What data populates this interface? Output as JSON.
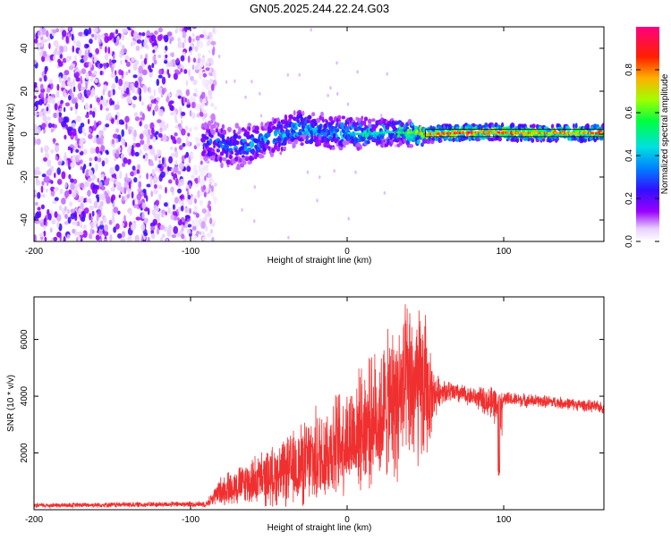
{
  "title": "GN05.2025.244.22.24.G03",
  "chart_data": [
    {
      "type": "heatmap",
      "name": "spectrogram",
      "xlabel": "Height of straight line (km)",
      "ylabel": "Frequency (Hz)",
      "xlim": [
        -200,
        164
      ],
      "ylim": [
        -50,
        50
      ],
      "xticks": [
        -200,
        -100,
        0,
        100
      ],
      "yticks": [
        -40,
        -20,
        0,
        20,
        40
      ],
      "colorbar": {
        "label": "Normalized spectral amplitude",
        "range": [
          0,
          1
        ],
        "ticks": [
          0.0,
          0.2,
          0.4,
          0.6,
          0.8
        ],
        "tick_labels": [
          "0.0",
          "0.2",
          "0.4",
          "0.6",
          "0.8"
        ],
        "colors": [
          "#ffffff",
          "#9a00ff",
          "#0020ff",
          "#00c8ff",
          "#00ff60",
          "#c8ff00",
          "#ff8000",
          "#ff0000",
          "#ff0080"
        ]
      },
      "ridge": {
        "x": [
          -90,
          -70,
          -50,
          -30,
          -10,
          10,
          30,
          50,
          70,
          90,
          110,
          130,
          150,
          164
        ],
        "frequency": [
          -4,
          -6,
          -2,
          3,
          1,
          0,
          1,
          0,
          0.5,
          1,
          0.5,
          0.5,
          0.5,
          0.5
        ],
        "peak_amplitude": [
          0.3,
          0.35,
          0.4,
          0.45,
          0.45,
          0.5,
          0.5,
          0.8,
          0.9,
          0.85,
          0.85,
          0.8,
          0.85,
          0.85
        ]
      },
      "noise_region_x": [
        -200,
        -90
      ]
    },
    {
      "type": "line",
      "name": "snr",
      "xlabel": "Height of straight line (km)",
      "ylabel": "SNR (10 * v/v)",
      "xlim": [
        -200,
        164
      ],
      "ylim": [
        0,
        7500
      ],
      "xticks": [
        -200,
        -100,
        0,
        100
      ],
      "yticks": [
        2000,
        4000,
        6000
      ],
      "color": "#f03030",
      "envelope": {
        "x": [
          -200,
          -90,
          -80,
          -60,
          -40,
          -20,
          0,
          20,
          30,
          40,
          50,
          55,
          60,
          80,
          95,
          100,
          130,
          164
        ],
        "mean": [
          150,
          200,
          700,
          1000,
          1300,
          1800,
          2500,
          3300,
          3800,
          4300,
          4200,
          4000,
          4200,
          4000,
          3700,
          3900,
          3800,
          3600
        ],
        "spread": [
          80,
          100,
          500,
          800,
          1100,
          1600,
          1800,
          2200,
          2600,
          2800,
          2600,
          900,
          400,
          300,
          600,
          250,
          200,
          200
        ]
      },
      "spike": {
        "x": 97,
        "value": 1150
      }
    }
  ]
}
